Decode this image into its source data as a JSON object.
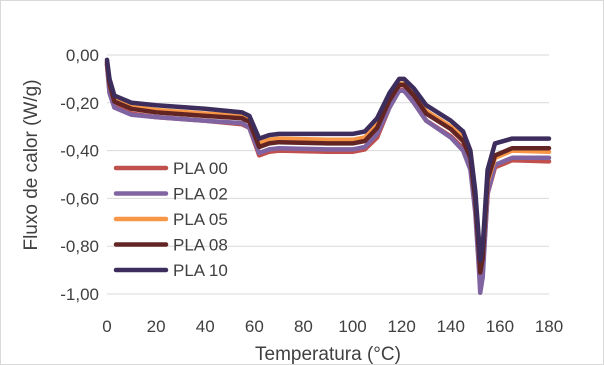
{
  "chart_data": {
    "type": "line",
    "title": "",
    "xlabel": "Temperatura (°C)",
    "ylabel": "Fluxo de calor (W/g)",
    "xlim": [
      0,
      180
    ],
    "ylim": [
      -1.0,
      0.0
    ],
    "x_ticks": [
      0,
      20,
      40,
      60,
      80,
      100,
      120,
      140,
      160,
      180
    ],
    "x_tick_labels": [
      "0",
      "20",
      "40",
      "60",
      "80",
      "100",
      "120",
      "140",
      "160",
      "180"
    ],
    "y_ticks": [
      0.0,
      -0.2,
      -0.4,
      -0.6,
      -0.8,
      -1.0
    ],
    "y_tick_labels": [
      "0,00",
      "-0,20",
      "-0,40",
      "-0,60",
      "-0,80",
      "-1,00"
    ],
    "grid": "horizontal major",
    "legend_position": "left",
    "series": [
      {
        "name": "PLA 00",
        "color": "#c0504d",
        "points": [
          [
            0,
            -0.04
          ],
          [
            1,
            -0.15
          ],
          [
            3,
            -0.21
          ],
          [
            10,
            -0.245
          ],
          [
            20,
            -0.26
          ],
          [
            40,
            -0.275
          ],
          [
            55,
            -0.29
          ],
          [
            58,
            -0.305
          ],
          [
            62,
            -0.42
          ],
          [
            66,
            -0.405
          ],
          [
            70,
            -0.4
          ],
          [
            90,
            -0.405
          ],
          [
            100,
            -0.405
          ],
          [
            105,
            -0.395
          ],
          [
            110,
            -0.345
          ],
          [
            115,
            -0.22
          ],
          [
            119,
            -0.145
          ],
          [
            121,
            -0.145
          ],
          [
            125,
            -0.2
          ],
          [
            130,
            -0.275
          ],
          [
            140,
            -0.34
          ],
          [
            145,
            -0.39
          ],
          [
            148,
            -0.46
          ],
          [
            150,
            -0.64
          ],
          [
            151.5,
            -0.86
          ],
          [
            152,
            -0.97
          ],
          [
            153,
            -0.9
          ],
          [
            155,
            -0.58
          ],
          [
            158,
            -0.47
          ],
          [
            165,
            -0.44
          ],
          [
            180,
            -0.445
          ]
        ]
      },
      {
        "name": "PLA 02",
        "color": "#8064a2",
        "points": [
          [
            0,
            -0.04
          ],
          [
            1,
            -0.16
          ],
          [
            3,
            -0.22
          ],
          [
            10,
            -0.25
          ],
          [
            20,
            -0.26
          ],
          [
            40,
            -0.275
          ],
          [
            55,
            -0.285
          ],
          [
            58,
            -0.305
          ],
          [
            62,
            -0.41
          ],
          [
            66,
            -0.395
          ],
          [
            70,
            -0.39
          ],
          [
            90,
            -0.395
          ],
          [
            100,
            -0.395
          ],
          [
            105,
            -0.385
          ],
          [
            110,
            -0.33
          ],
          [
            115,
            -0.22
          ],
          [
            119,
            -0.15
          ],
          [
            121,
            -0.15
          ],
          [
            125,
            -0.2
          ],
          [
            130,
            -0.275
          ],
          [
            140,
            -0.345
          ],
          [
            145,
            -0.4
          ],
          [
            148,
            -0.48
          ],
          [
            150,
            -0.66
          ],
          [
            151.5,
            -0.9
          ],
          [
            152,
            -0.995
          ],
          [
            153,
            -0.93
          ],
          [
            155,
            -0.58
          ],
          [
            158,
            -0.46
          ],
          [
            165,
            -0.43
          ],
          [
            180,
            -0.43
          ]
        ]
      },
      {
        "name": "PLA 05",
        "color": "#f79646",
        "points": [
          [
            0,
            -0.03
          ],
          [
            1,
            -0.12
          ],
          [
            3,
            -0.19
          ],
          [
            10,
            -0.215
          ],
          [
            20,
            -0.23
          ],
          [
            40,
            -0.245
          ],
          [
            55,
            -0.255
          ],
          [
            58,
            -0.27
          ],
          [
            62,
            -0.37
          ],
          [
            66,
            -0.355
          ],
          [
            70,
            -0.35
          ],
          [
            90,
            -0.355
          ],
          [
            100,
            -0.355
          ],
          [
            105,
            -0.345
          ],
          [
            110,
            -0.29
          ],
          [
            115,
            -0.18
          ],
          [
            119,
            -0.12
          ],
          [
            121,
            -0.12
          ],
          [
            125,
            -0.16
          ],
          [
            130,
            -0.235
          ],
          [
            140,
            -0.3
          ],
          [
            145,
            -0.345
          ],
          [
            148,
            -0.42
          ],
          [
            150,
            -0.6
          ],
          [
            151.5,
            -0.82
          ],
          [
            152,
            -0.9
          ],
          [
            153,
            -0.84
          ],
          [
            155,
            -0.53
          ],
          [
            158,
            -0.43
          ],
          [
            165,
            -0.4
          ],
          [
            180,
            -0.405
          ]
        ]
      },
      {
        "name": "PLA 08",
        "color": "#632523",
        "points": [
          [
            0,
            -0.03
          ],
          [
            1,
            -0.12
          ],
          [
            3,
            -0.195
          ],
          [
            10,
            -0.225
          ],
          [
            20,
            -0.24
          ],
          [
            40,
            -0.255
          ],
          [
            55,
            -0.265
          ],
          [
            58,
            -0.28
          ],
          [
            62,
            -0.385
          ],
          [
            66,
            -0.37
          ],
          [
            70,
            -0.365
          ],
          [
            90,
            -0.37
          ],
          [
            100,
            -0.37
          ],
          [
            105,
            -0.36
          ],
          [
            110,
            -0.305
          ],
          [
            115,
            -0.19
          ],
          [
            119,
            -0.125
          ],
          [
            121,
            -0.125
          ],
          [
            125,
            -0.17
          ],
          [
            130,
            -0.245
          ],
          [
            140,
            -0.31
          ],
          [
            145,
            -0.36
          ],
          [
            148,
            -0.43
          ],
          [
            150,
            -0.61
          ],
          [
            151.5,
            -0.83
          ],
          [
            152,
            -0.91
          ],
          [
            153,
            -0.85
          ],
          [
            155,
            -0.52
          ],
          [
            158,
            -0.42
          ],
          [
            165,
            -0.39
          ],
          [
            180,
            -0.39
          ]
        ]
      },
      {
        "name": "PLA 10",
        "color": "#3c2d5c",
        "points": [
          [
            0,
            -0.02
          ],
          [
            1,
            -0.1
          ],
          [
            3,
            -0.17
          ],
          [
            10,
            -0.2
          ],
          [
            20,
            -0.21
          ],
          [
            40,
            -0.225
          ],
          [
            55,
            -0.24
          ],
          [
            58,
            -0.255
          ],
          [
            62,
            -0.35
          ],
          [
            66,
            -0.335
          ],
          [
            70,
            -0.33
          ],
          [
            90,
            -0.33
          ],
          [
            100,
            -0.33
          ],
          [
            105,
            -0.32
          ],
          [
            110,
            -0.265
          ],
          [
            115,
            -0.16
          ],
          [
            119,
            -0.1
          ],
          [
            121,
            -0.1
          ],
          [
            125,
            -0.14
          ],
          [
            130,
            -0.21
          ],
          [
            140,
            -0.275
          ],
          [
            145,
            -0.32
          ],
          [
            148,
            -0.4
          ],
          [
            150,
            -0.57
          ],
          [
            151.5,
            -0.78
          ],
          [
            152,
            -0.86
          ],
          [
            153,
            -0.8
          ],
          [
            155,
            -0.48
          ],
          [
            158,
            -0.37
          ],
          [
            165,
            -0.35
          ],
          [
            180,
            -0.35
          ]
        ]
      }
    ]
  }
}
